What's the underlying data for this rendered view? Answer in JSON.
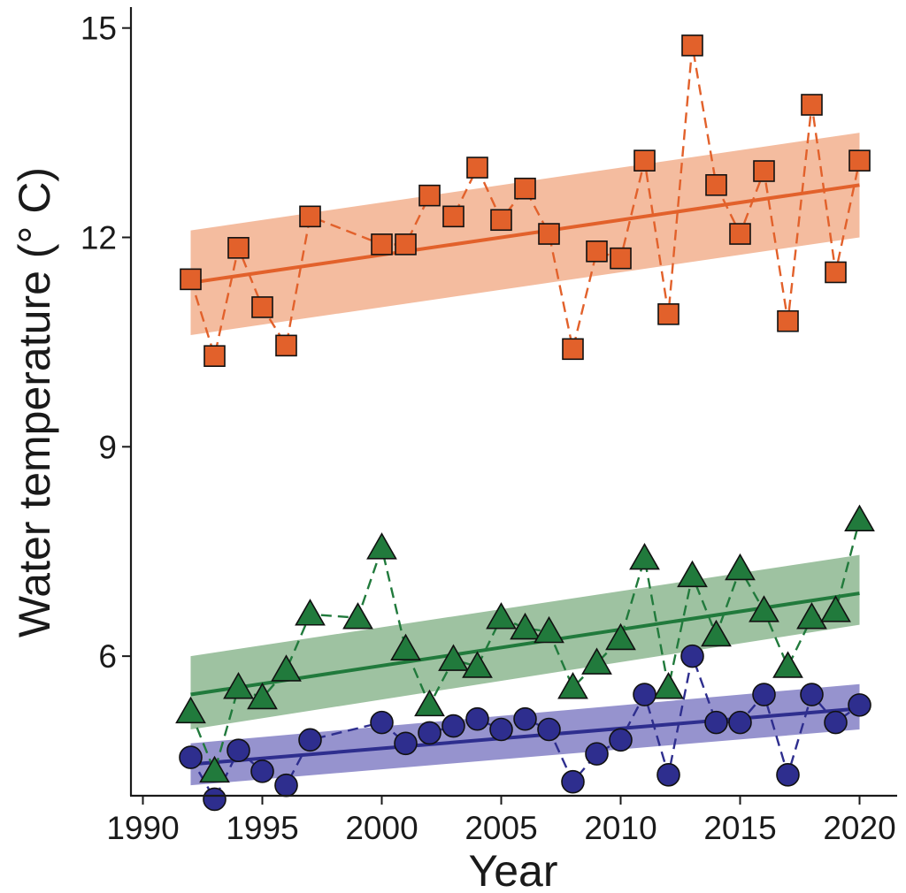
{
  "chart_data": {
    "type": "scatter",
    "xlabel": "Year",
    "ylabel": "Water temperature (° C)",
    "xlim": [
      1989.5,
      2021.5
    ],
    "ylim": [
      4.0,
      15.3
    ],
    "xticks": [
      1990,
      1995,
      2000,
      2005,
      2010,
      2015,
      2020
    ],
    "yticks": [
      6,
      9,
      12,
      15
    ],
    "x_tick_labels": [
      "1990",
      "1995",
      "2000",
      "2005",
      "2010",
      "2015",
      "2020"
    ],
    "y_tick_labels": [
      "6",
      "9",
      "12",
      "15"
    ],
    "grid": false,
    "legend": "none",
    "series": [
      {
        "marker": "square",
        "color": "#E2612B",
        "band_color": "#F2B08E",
        "x": [
          1992,
          1993,
          1994,
          1995,
          1996,
          1997,
          2000,
          2001,
          2002,
          2003,
          2004,
          2005,
          2006,
          2007,
          2008,
          2009,
          2010,
          2011,
          2012,
          2013,
          2014,
          2015,
          2016,
          2017,
          2018,
          2019,
          2020
        ],
        "y": [
          11.4,
          10.3,
          11.85,
          11.0,
          10.45,
          12.3,
          11.9,
          11.9,
          12.6,
          12.3,
          13.0,
          12.25,
          12.7,
          12.05,
          10.4,
          11.8,
          11.7,
          13.1,
          10.9,
          14.75,
          12.75,
          12.05,
          12.95,
          10.8,
          13.9,
          11.5,
          13.1
        ],
        "fit": {
          "x": [
            1992,
            2020
          ],
          "y": [
            11.35,
            12.75
          ]
        },
        "ci_lower": [
          10.6,
          12.0
        ],
        "ci_upper": [
          12.1,
          13.5
        ]
      },
      {
        "marker": "triangle",
        "color": "#217A3C",
        "band_color": "#8DB791",
        "x": [
          1992,
          1993,
          1994,
          1995,
          1996,
          1997,
          1999,
          2000,
          2001,
          2002,
          2003,
          2004,
          2005,
          2006,
          2007,
          2008,
          2009,
          2010,
          2011,
          2012,
          2013,
          2014,
          2015,
          2016,
          2017,
          2018,
          2019,
          2020
        ],
        "y": [
          5.2,
          4.35,
          5.55,
          5.4,
          5.8,
          6.6,
          6.55,
          7.55,
          6.1,
          5.3,
          5.95,
          5.85,
          6.55,
          6.4,
          6.35,
          5.55,
          5.9,
          6.25,
          7.4,
          5.55,
          7.15,
          6.3,
          7.25,
          6.65,
          5.85,
          6.55,
          6.65,
          7.95
        ],
        "fit": {
          "x": [
            1992,
            2020
          ],
          "y": [
            5.45,
            6.9
          ]
        },
        "ci_lower": [
          4.95,
          6.45
        ],
        "ci_upper": [
          6.0,
          7.45
        ]
      },
      {
        "marker": "circle",
        "color": "#2E2E8E",
        "band_color": "#8480C6",
        "x": [
          1992,
          1993,
          1994,
          1995,
          1996,
          1997,
          2000,
          2001,
          2002,
          2003,
          2004,
          2005,
          2006,
          2007,
          2008,
          2009,
          2010,
          2011,
          2012,
          2013,
          2014,
          2015,
          2016,
          2017,
          2018,
          2019,
          2020
        ],
        "y": [
          4.55,
          3.95,
          4.65,
          4.35,
          4.15,
          4.8,
          5.05,
          4.75,
          4.9,
          5.0,
          5.1,
          4.95,
          5.1,
          4.95,
          4.2,
          4.6,
          4.8,
          5.45,
          4.3,
          6.0,
          5.05,
          5.05,
          5.45,
          4.3,
          5.45,
          5.05,
          5.3
        ],
        "fit": {
          "x": [
            1992,
            2020
          ],
          "y": [
            4.45,
            5.25
          ]
        },
        "ci_lower": [
          4.15,
          4.95
        ],
        "ci_upper": [
          4.75,
          5.6
        ]
      }
    ]
  }
}
